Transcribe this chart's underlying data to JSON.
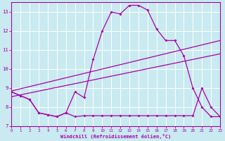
{
  "background_color": "#c8eaf0",
  "grid_color": "#ffffff",
  "line_color": "#aa00aa",
  "xlim": [
    0,
    23
  ],
  "ylim": [
    7,
    13.5
  ],
  "xticks": [
    0,
    1,
    2,
    3,
    4,
    5,
    6,
    7,
    8,
    9,
    10,
    11,
    12,
    13,
    14,
    15,
    16,
    17,
    18,
    19,
    20,
    21,
    22,
    23
  ],
  "yticks": [
    7,
    8,
    9,
    10,
    11,
    12,
    13
  ],
  "xlabel": "Windchill (Refroidissement éolien,°C)",
  "series": [
    {
      "x": [
        0,
        1,
        2,
        3,
        4,
        5,
        6,
        7,
        8,
        9,
        10,
        11,
        12,
        13,
        14,
        15,
        16,
        17,
        18,
        19,
        20,
        21,
        22,
        23
      ],
      "y": [
        8.8,
        8.6,
        8.4,
        7.7,
        7.6,
        7.5,
        7.7,
        8.8,
        8.5,
        10.5,
        12.0,
        13.0,
        12.9,
        13.35,
        13.35,
        13.1,
        12.1,
        11.5,
        11.5,
        10.7,
        9.0,
        8.0,
        7.5,
        7.5
      ],
      "marker": "D",
      "ms": 2.0,
      "lw": 0.9
    },
    {
      "x": [
        0,
        1,
        2,
        3,
        4,
        5,
        6,
        7,
        8,
        9,
        10,
        11,
        12,
        13,
        14,
        15,
        16,
        17,
        18,
        19,
        20,
        21,
        22,
        23
      ],
      "y": [
        8.8,
        8.6,
        8.4,
        7.7,
        7.6,
        7.5,
        7.7,
        7.5,
        7.55,
        7.55,
        7.55,
        7.55,
        7.55,
        7.55,
        7.55,
        7.55,
        7.55,
        7.55,
        7.55,
        7.55,
        7.55,
        9.0,
        8.0,
        7.5
      ],
      "marker": "D",
      "ms": 2.0,
      "lw": 0.9
    },
    {
      "x": [
        0,
        23
      ],
      "y": [
        8.85,
        11.5
      ],
      "marker": null,
      "ms": 0,
      "lw": 0.9
    },
    {
      "x": [
        0,
        23
      ],
      "y": [
        8.55,
        10.8
      ],
      "marker": null,
      "ms": 0,
      "lw": 0.9
    }
  ]
}
